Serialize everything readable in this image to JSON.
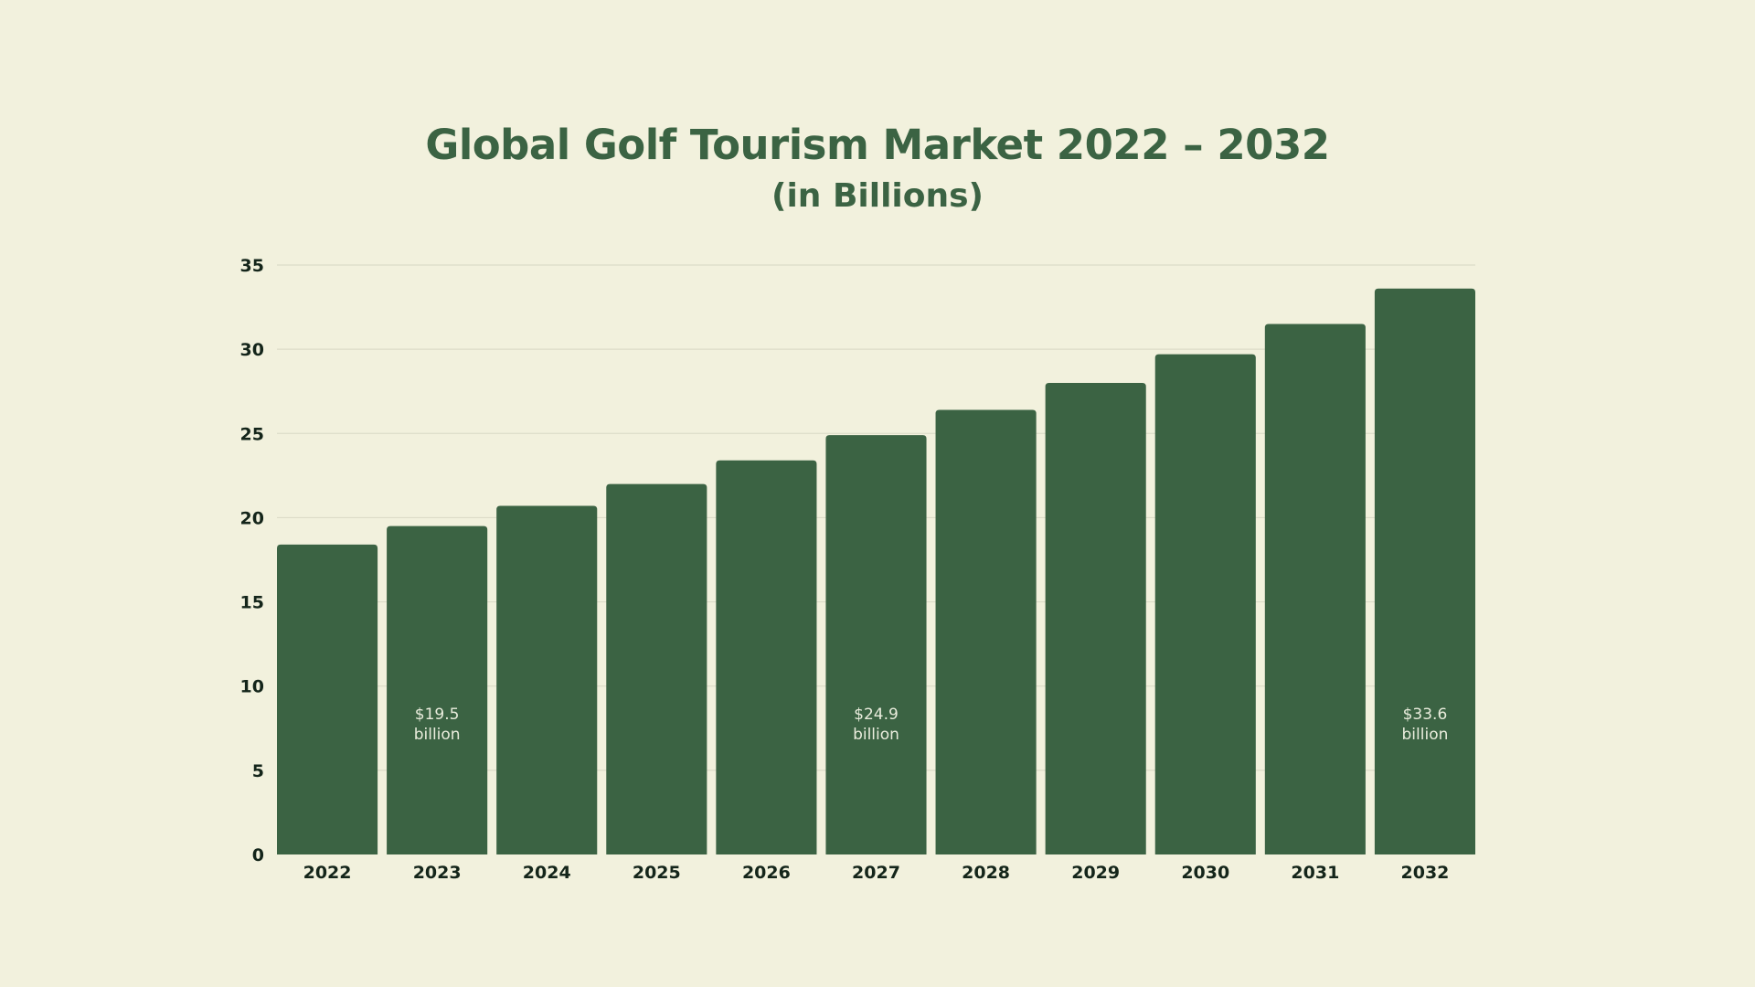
{
  "colors": {
    "background": "#f2f1dd",
    "bar": "#3b6343",
    "title": "#3b6343",
    "grid": "#dcdcc8",
    "tick_text": "#14251a",
    "data_label": "#e9ecdc"
  },
  "chart_data": {
    "type": "bar",
    "title": "Global Golf Tourism Market 2022 – 2032",
    "subtitle": "(in Billions)",
    "xlabel": "",
    "ylabel": "",
    "categories": [
      "2022",
      "2023",
      "2024",
      "2025",
      "2026",
      "2027",
      "2028",
      "2029",
      "2030",
      "2031",
      "2032"
    ],
    "values": [
      18.4,
      19.5,
      20.7,
      22.0,
      23.4,
      24.9,
      26.4,
      28.0,
      29.7,
      31.5,
      33.6
    ],
    "ylim": [
      0,
      35
    ],
    "yticks": [
      "0",
      "5",
      "10",
      "15",
      "20",
      "25",
      "30",
      "35"
    ],
    "grid": true,
    "legend": "none",
    "annotations": [
      {
        "category": "2023",
        "line1": "$19.5",
        "line2": "billion"
      },
      {
        "category": "2027",
        "line1": "$24.9",
        "line2": "billion"
      },
      {
        "category": "2032",
        "line1": "$33.6",
        "line2": "billion"
      }
    ]
  }
}
